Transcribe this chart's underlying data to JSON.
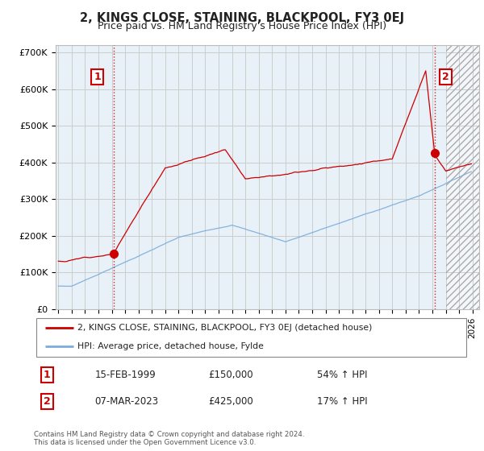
{
  "title": "2, KINGS CLOSE, STAINING, BLACKPOOL, FY3 0EJ",
  "subtitle": "Price paid vs. HM Land Registry's House Price Index (HPI)",
  "ylabel_ticks": [
    "£0",
    "£100K",
    "£200K",
    "£300K",
    "£400K",
    "£500K",
    "£600K",
    "£700K"
  ],
  "ytick_values": [
    0,
    100000,
    200000,
    300000,
    400000,
    500000,
    600000,
    700000
  ],
  "ylim": [
    0,
    720000
  ],
  "xlim_start": 1994.8,
  "xlim_end": 2026.5,
  "sale1_date": 1999.12,
  "sale1_price": 150000,
  "sale1_label": "1",
  "sale2_date": 2023.18,
  "sale2_price": 425000,
  "sale2_label": "2",
  "property_line_color": "#cc0000",
  "hpi_line_color": "#7aaddb",
  "bg_plot_color": "#e8f0f8",
  "property_label": "2, KINGS CLOSE, STAINING, BLACKPOOL, FY3 0EJ (detached house)",
  "hpi_label": "HPI: Average price, detached house, Fylde",
  "transaction1_date_str": "15-FEB-1999",
  "transaction1_price_str": "£150,000",
  "transaction1_hpi_str": "54% ↑ HPI",
  "transaction2_date_str": "07-MAR-2023",
  "transaction2_price_str": "£425,000",
  "transaction2_hpi_str": "17% ↑ HPI",
  "footer": "Contains HM Land Registry data © Crown copyright and database right 2024.\nThis data is licensed under the Open Government Licence v3.0.",
  "background_color": "#ffffff",
  "grid_color": "#cccccc",
  "title_fontsize": 10.5,
  "subtitle_fontsize": 9,
  "tick_fontsize": 8
}
